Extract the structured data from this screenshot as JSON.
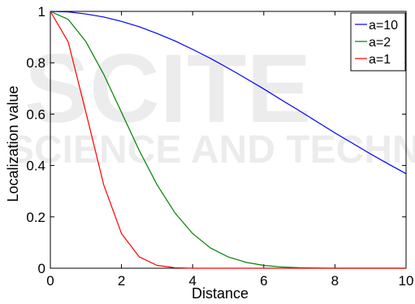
{
  "chart_data": {
    "type": "line",
    "title": "",
    "xlabel": "Distance",
    "ylabel": "Localization value",
    "xlim": [
      0,
      10
    ],
    "ylim": [
      0,
      1
    ],
    "xticks": [
      0,
      2,
      4,
      6,
      8,
      10
    ],
    "yticks": [
      0,
      0.2,
      0.4,
      0.6,
      0.8,
      1
    ],
    "xtick_labels": [
      "0",
      "2",
      "4",
      "6",
      "8",
      "10"
    ],
    "ytick_labels": [
      "0",
      "0.2",
      "0.4",
      "0.6",
      "0.8",
      "1"
    ],
    "grid": false,
    "legend_position": "top-right",
    "x": [
      0,
      0.5,
      1,
      1.5,
      2,
      2.5,
      3,
      3.5,
      4,
      4.5,
      5,
      5.5,
      6,
      6.5,
      7,
      7.5,
      8,
      8.5,
      9,
      9.5,
      10
    ],
    "series": [
      {
        "name": "a=10",
        "color": "#0000ff",
        "values": [
          1.0,
          0.998,
          0.99,
          0.978,
          0.961,
          0.94,
          0.914,
          0.885,
          0.852,
          0.817,
          0.779,
          0.739,
          0.698,
          0.655,
          0.613,
          0.57,
          0.527,
          0.486,
          0.445,
          0.406,
          0.368
        ]
      },
      {
        "name": "a=2",
        "color": "#008000",
        "values": [
          1.0,
          0.969,
          0.882,
          0.755,
          0.607,
          0.458,
          0.325,
          0.216,
          0.135,
          0.079,
          0.044,
          0.023,
          0.011,
          0.005,
          0.002,
          0.001,
          0.0,
          0.0,
          0.0,
          0.0,
          0.0
        ]
      },
      {
        "name": "a=1",
        "color": "#ff0000",
        "values": [
          1.0,
          0.882,
          0.607,
          0.325,
          0.135,
          0.044,
          0.011,
          0.002,
          0.0,
          0.0,
          0.0,
          0.0,
          0.0,
          0.0,
          0.0,
          0.0,
          0.0,
          0.0,
          0.0,
          0.0,
          0.0
        ]
      }
    ]
  },
  "watermark": {
    "logo_text": "SCITE",
    "tagline": "SCIENCE AND TECHNOLOGY"
  }
}
